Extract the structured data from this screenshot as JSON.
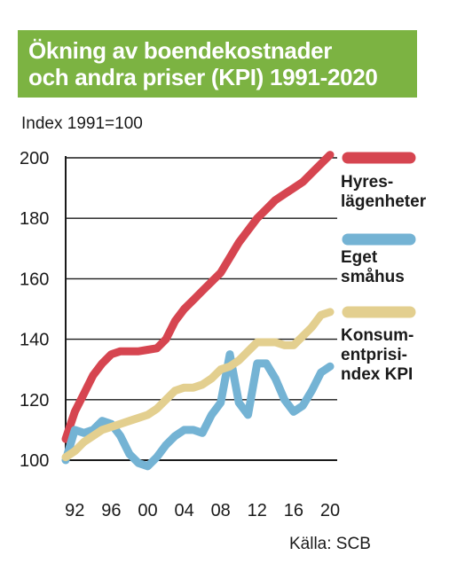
{
  "title": {
    "line1": "Ökning av boendekostnader",
    "line2": "och andra priser (KPI) 1991-2020",
    "bg_color": "#7cb342"
  },
  "y_axis_label": "Index 1991=100",
  "source": "Källa: SCB",
  "chart_data": {
    "type": "line",
    "x_tick_labels": [
      "92",
      "96",
      "00",
      "04",
      "08",
      "12",
      "16",
      "20"
    ],
    "x_tick_years": [
      1992,
      1996,
      2000,
      2004,
      2008,
      2012,
      2016,
      2020
    ],
    "y_ticks": [
      100,
      120,
      140,
      160,
      180,
      200
    ],
    "xlim": [
      1991,
      2020
    ],
    "ylim": [
      100,
      200
    ],
    "grid": true,
    "legend_position": "right",
    "series": [
      {
        "name": "Hyres-\nlägenheter",
        "color": "#d64550",
        "x": [
          1991,
          1992,
          1993,
          1994,
          1995,
          1996,
          1997,
          1998,
          1999,
          2000,
          2001,
          2002,
          2003,
          2004,
          2005,
          2006,
          2007,
          2008,
          2009,
          2010,
          2011,
          2012,
          2013,
          2014,
          2015,
          2016,
          2017,
          2018,
          2019,
          2020
        ],
        "values": [
          107,
          116,
          122,
          128,
          132,
          135,
          136,
          136,
          136,
          136.5,
          137,
          140,
          146,
          150,
          153,
          156,
          159,
          162,
          167,
          172,
          176,
          180,
          183,
          186,
          188,
          190,
          192,
          195,
          198,
          201
        ]
      },
      {
        "name": "Eget\nsmåhus",
        "color": "#74b3d4",
        "x": [
          1991,
          1992,
          1993,
          1994,
          1995,
          1996,
          1997,
          1998,
          1999,
          2000,
          2001,
          2002,
          2003,
          2004,
          2005,
          2006,
          2007,
          2008,
          2009,
          2010,
          2011,
          2012,
          2013,
          2014,
          2015,
          2016,
          2017,
          2018,
          2019,
          2020
        ],
        "values": [
          100,
          110,
          109,
          110,
          113,
          112,
          108,
          102,
          99,
          98,
          101,
          105,
          108,
          110,
          110,
          109,
          115,
          119,
          135,
          119,
          115,
          132,
          132,
          127,
          120,
          116,
          118,
          123,
          129,
          131
        ]
      },
      {
        "name": "Konsum-\nentprisi-\nndex KPI",
        "color": "#e3cf8f",
        "x": [
          1991,
          1992,
          1993,
          1994,
          1995,
          1996,
          1997,
          1998,
          1999,
          2000,
          2001,
          2002,
          2003,
          2004,
          2005,
          2006,
          2007,
          2008,
          2009,
          2010,
          2011,
          2012,
          2013,
          2014,
          2015,
          2016,
          2017,
          2018,
          2019,
          2020
        ],
        "values": [
          101,
          103,
          106,
          108,
          110,
          111,
          112,
          113,
          114,
          115,
          117,
          120,
          123,
          124,
          124,
          125,
          127,
          130,
          131,
          133,
          136,
          139,
          139,
          139,
          138,
          138,
          141,
          144,
          148,
          149
        ]
      }
    ]
  }
}
